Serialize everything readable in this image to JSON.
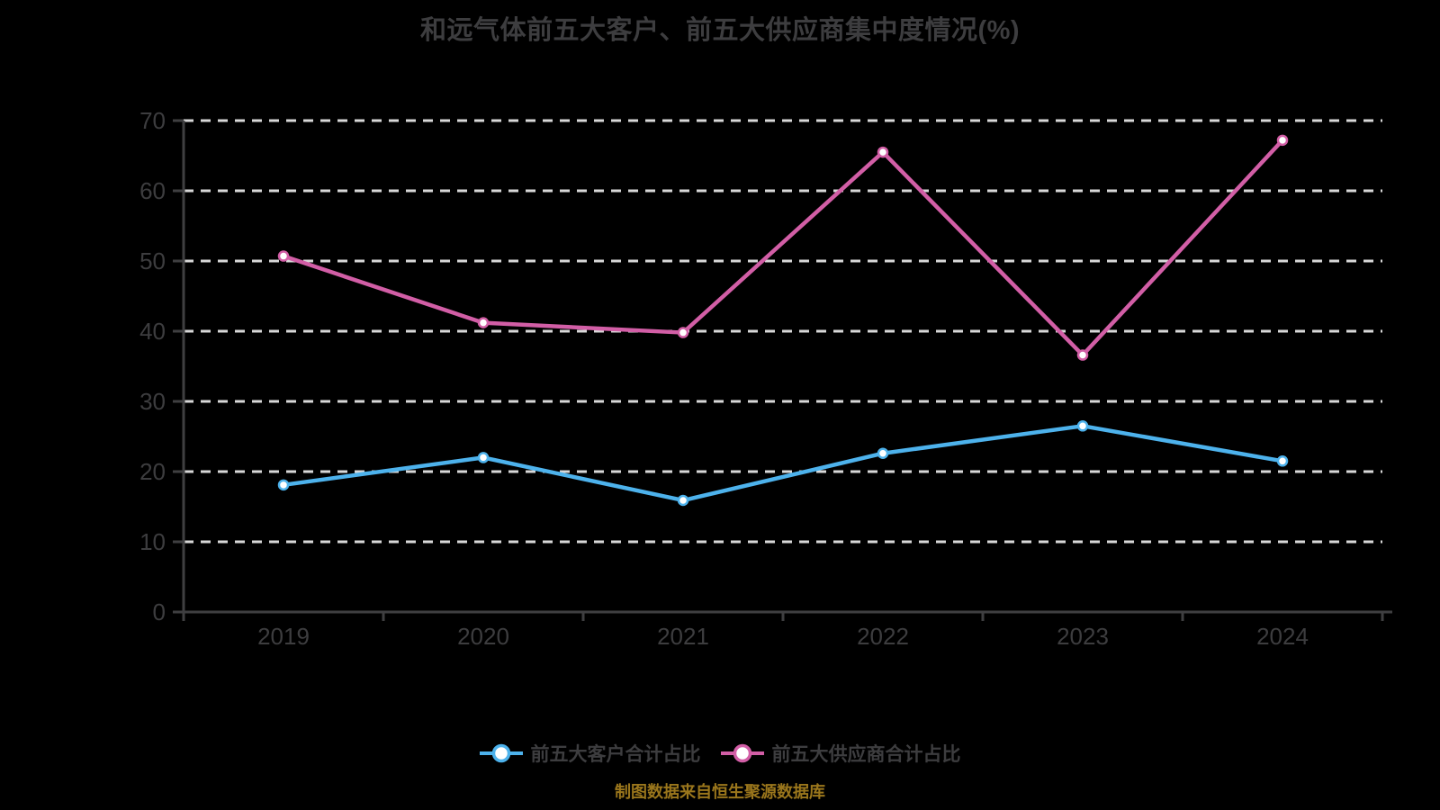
{
  "footer": "制图数据来自恒生聚源数据库",
  "colors": {
    "background": "#000000",
    "title_text": "#3d3d3f",
    "axis_text": "#3d3d3f",
    "axis_line": "#3f3f41",
    "grid_line": "#d8d8d8",
    "customers_line": "#4db2ec",
    "suppliers_line": "#d25ea6",
    "marker_fill": "#ffffff",
    "footer_text": "#9a761c"
  },
  "chart_data": {
    "type": "line",
    "title": "和远气体前五大客户、前五大供应商集中度情况(%)",
    "categories": [
      "2019",
      "2020",
      "2021",
      "2022",
      "2023",
      "2024"
    ],
    "series": [
      {
        "key": "customers",
        "name": "前五大客户合计占比",
        "color": "#4db2ec",
        "values": [
          18.1,
          22.0,
          15.9,
          22.6,
          26.5,
          21.5
        ]
      },
      {
        "key": "suppliers",
        "name": "前五大供应商合计占比",
        "color": "#d25ea6",
        "values": [
          50.7,
          41.2,
          39.8,
          65.5,
          36.6,
          67.2
        ]
      }
    ],
    "xlabel": "",
    "ylabel": "",
    "ylim": [
      0,
      70
    ],
    "ytick_step": 10,
    "yticks": [
      0,
      10,
      20,
      30,
      40,
      50,
      60,
      70
    ],
    "grid": "horizontal-dashed",
    "legend_position": "bottom",
    "marker": "circle-white-fill"
  }
}
